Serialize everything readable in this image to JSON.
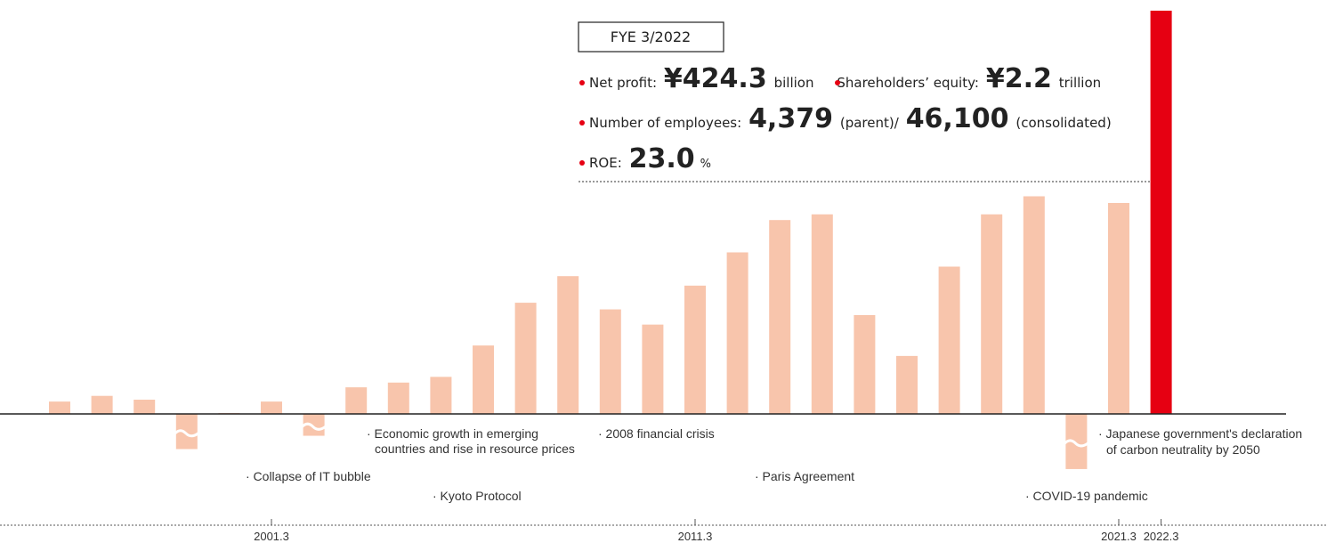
{
  "chart_data": {
    "type": "bar",
    "categories": [
      null,
      null,
      null,
      null,
      null,
      "2001.3",
      null,
      null,
      null,
      null,
      null,
      null,
      null,
      null,
      null,
      "2011.3",
      null,
      null,
      null,
      null,
      null,
      null,
      null,
      null,
      null,
      "2021.3",
      "2022.3"
    ],
    "values": [
      13,
      19,
      15,
      -37,
      1,
      13,
      -23,
      28,
      33,
      39,
      72,
      117,
      145,
      110,
      94,
      135,
      170,
      204,
      210,
      104,
      61,
      155,
      210,
      229,
      -58,
      222,
      424.3
    ],
    "color": "#f8c5ac",
    "highlight_color": "#e60012",
    "ylim": [
      -62,
      424.3
    ],
    "annotations": [
      [
        "· Economic growth in emerging",
        "countries and rise in resource prices"
      ],
      [
        "· 2008 financial crisis"
      ],
      [
        "· Collapse of IT bubble"
      ],
      [
        "· Kyoto Protocol"
      ],
      [
        "· Paris Agreement"
      ],
      [
        "· Japanese government's declaration",
        "of carbon neutrality by 2050"
      ],
      [
        "· COVID-19 pandemic"
      ]
    ],
    "info": {
      "title": "FYE 3/2022",
      "lines": [
        [
          "Net profit:",
          "¥424.3",
          "billion",
          "Shareholders’ equity:",
          "¥2.2",
          "trillion"
        ],
        [
          "Number of employees:",
          "4,379",
          "(parent)/",
          "46,100",
          "(consolidated)"
        ],
        [
          "ROE:",
          "23.0",
          "%"
        ]
      ]
    }
  }
}
